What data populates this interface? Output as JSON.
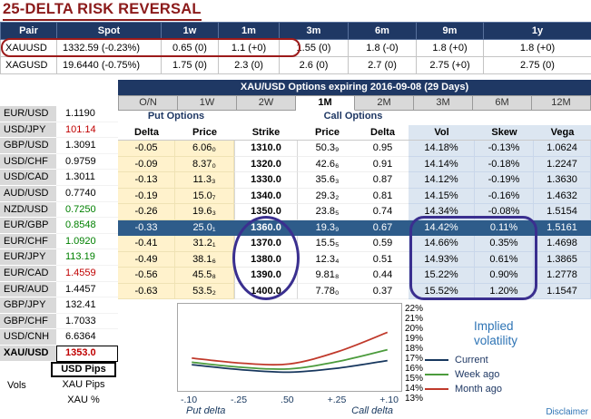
{
  "title": "25-DELTA RISK REVERSAL",
  "colors": {
    "navy_header": "#1F3864",
    "put_yellow": "#FFF2CC",
    "vol_blue": "#DCE6F1",
    "row_highlight": "#2E5C8A",
    "red_annotation": "#9C1A1A",
    "purple_annotation": "#3A2F8F",
    "up_green": "#008000",
    "down_red": "#C00000"
  },
  "rr_table": {
    "headers": [
      "Pair",
      "Spot",
      "1w",
      "1m",
      "3m",
      "6m",
      "9m",
      "1y"
    ],
    "rows": [
      {
        "pair": "XAUUSD",
        "cells": [
          "1332.59 (-0.23%)",
          "0.65 (0)",
          "1.1 (+0)",
          "1.55 (0)",
          "1.8 (-0)",
          "1.8 (+0)",
          "1.8 (+0)"
        ]
      },
      {
        "pair": "XAGUSD",
        "cells": [
          "19.6440 (-0.75%)",
          "1.75 (0)",
          "2.3 (0)",
          "2.6 (0)",
          "2.7 (0)",
          "2.75 (+0)",
          "2.75 (0)"
        ]
      }
    ]
  },
  "sidebar": {
    "pairs": [
      {
        "pair": "EUR/USD",
        "value": "1.1190",
        "value_color": "#000000",
        "selected": false
      },
      {
        "pair": "USD/JPY",
        "value": "101.14",
        "value_color": "#C00000",
        "selected": false
      },
      {
        "pair": "GBP/USD",
        "value": "1.3091",
        "value_color": "#000000",
        "selected": false
      },
      {
        "pair": "USD/CHF",
        "value": "0.9759",
        "value_color": "#000000",
        "selected": false
      },
      {
        "pair": "USD/CAD",
        "value": "1.3011",
        "value_color": "#000000",
        "selected": false
      },
      {
        "pair": "AUD/USD",
        "value": "0.7740",
        "value_color": "#000000",
        "selected": false
      },
      {
        "pair": "NZD/USD",
        "value": "0.7250",
        "value_color": "#008000",
        "selected": false
      },
      {
        "pair": "EUR/GBP",
        "value": "0.8548",
        "value_color": "#008000",
        "selected": false
      },
      {
        "pair": "EUR/CHF",
        "value": "1.0920",
        "value_color": "#008000",
        "selected": false
      },
      {
        "pair": "EUR/JPY",
        "value": "113.19",
        "value_color": "#008000",
        "selected": false
      },
      {
        "pair": "EUR/CAD",
        "value": "1.4559",
        "value_color": "#C00000",
        "selected": false
      },
      {
        "pair": "EUR/AUD",
        "value": "1.4457",
        "value_color": "#000000",
        "selected": false
      },
      {
        "pair": "GBP/JPY",
        "value": "132.41",
        "value_color": "#000000",
        "selected": false
      },
      {
        "pair": "GBP/CHF",
        "value": "1.7033",
        "value_color": "#000000",
        "selected": false
      },
      {
        "pair": "USD/CNH",
        "value": "6.6364",
        "value_color": "#000000",
        "selected": false
      },
      {
        "pair": "XAU/USD",
        "value": "1353.0",
        "value_color": "#C00000",
        "selected": true
      }
    ],
    "vols_label": "Vols",
    "modes": [
      {
        "label": "USD Pips",
        "selected": true
      },
      {
        "label": "XAU Pips",
        "selected": false
      },
      {
        "label": "XAU %",
        "selected": false
      }
    ]
  },
  "options_panel": {
    "title": "XAU/USD Options expiring 2016-09-08 (29 Days)",
    "tabs": [
      "O/N",
      "1W",
      "2W",
      "1M",
      "2M",
      "3M",
      "6M",
      "12M"
    ],
    "active_tab": "1M",
    "put_group_label": "Put Options",
    "call_group_label": "Call Options",
    "columns": [
      "Delta",
      "Price",
      "Strike",
      "Price",
      "Delta",
      "Vol",
      "Skew",
      "Vega"
    ],
    "rows": [
      {
        "put_delta": "-0.05",
        "put_price": "6.06₀",
        "strike": "1310.0",
        "call_price": "50.3₉",
        "call_delta": "0.95",
        "vol": "14.18%",
        "skew": "-0.13%",
        "vega": "1.0624",
        "highlight": false
      },
      {
        "put_delta": "-0.09",
        "put_price": "8.37₀",
        "strike": "1320.0",
        "call_price": "42.6₆",
        "call_delta": "0.91",
        "vol": "14.14%",
        "skew": "-0.18%",
        "vega": "1.2247",
        "highlight": false
      },
      {
        "put_delta": "-0.13",
        "put_price": "11.3₃",
        "strike": "1330.0",
        "call_price": "35.6₃",
        "call_delta": "0.87",
        "vol": "14.12%",
        "skew": "-0.19%",
        "vega": "1.3630",
        "highlight": false
      },
      {
        "put_delta": "-0.19",
        "put_price": "15.0₇",
        "strike": "1340.0",
        "call_price": "29.3₂",
        "call_delta": "0.81",
        "vol": "14.15%",
        "skew": "-0.16%",
        "vega": "1.4632",
        "highlight": false
      },
      {
        "put_delta": "-0.26",
        "put_price": "19.6₃",
        "strike": "1350.0",
        "call_price": "23.8₅",
        "call_delta": "0.74",
        "vol": "14.34%",
        "skew": "-0.08%",
        "vega": "1.5154",
        "highlight": false
      },
      {
        "put_delta": "-0.33",
        "put_price": "25.0₁",
        "strike": "1360.0",
        "call_price": "19.3₉",
        "call_delta": "0.67",
        "vol": "14.42%",
        "skew": "0.11%",
        "vega": "1.5161",
        "highlight": true
      },
      {
        "put_delta": "-0.41",
        "put_price": "31.2₁",
        "strike": "1370.0",
        "call_price": "15.5₅",
        "call_delta": "0.59",
        "vol": "14.66%",
        "skew": "0.35%",
        "vega": "1.4698",
        "highlight": false
      },
      {
        "put_delta": "-0.49",
        "put_price": "38.1₆",
        "strike": "1380.0",
        "call_price": "12.3₄",
        "call_delta": "0.51",
        "vol": "14.93%",
        "skew": "0.61%",
        "vega": "1.3865",
        "highlight": false
      },
      {
        "put_delta": "-0.56",
        "put_price": "45.5₈",
        "strike": "1390.0",
        "call_price": "9.81₈",
        "call_delta": "0.44",
        "vol": "15.22%",
        "skew": "0.90%",
        "vega": "1.2778",
        "highlight": false
      },
      {
        "put_delta": "-0.63",
        "put_price": "53.5₂",
        "strike": "1400.0",
        "call_price": "7.78₀",
        "call_delta": "0.37",
        "vol": "15.52%",
        "skew": "1.20%",
        "vega": "1.1547",
        "highlight": false
      }
    ]
  },
  "chart_data": {
    "type": "line",
    "title": "Implied volatility",
    "categories": [
      "-.10",
      "-.25",
      ".50",
      "+.25",
      "+.10"
    ],
    "x_axis_groups": {
      "left": "Put delta",
      "right": "Call delta"
    },
    "ylim": [
      13,
      22
    ],
    "y_ticks": [
      "22%",
      "21%",
      "20%",
      "19%",
      "18%",
      "17%",
      "16%",
      "15%",
      "14%",
      "13%"
    ],
    "grid": false,
    "legend_position": "right",
    "series": [
      {
        "name": "Current",
        "color": "#17375E",
        "values": [
          15.3,
          14.7,
          14.4,
          14.9,
          15.8
        ]
      },
      {
        "name": "Week ago",
        "color": "#4B9B3C",
        "values": [
          15.6,
          15.0,
          14.8,
          15.7,
          17.1
        ]
      },
      {
        "name": "Month ago",
        "color": "#C0392B",
        "values": [
          16.1,
          15.5,
          15.4,
          16.9,
          19.2
        ]
      }
    ]
  },
  "disclaimer_label": "Disclaimer"
}
